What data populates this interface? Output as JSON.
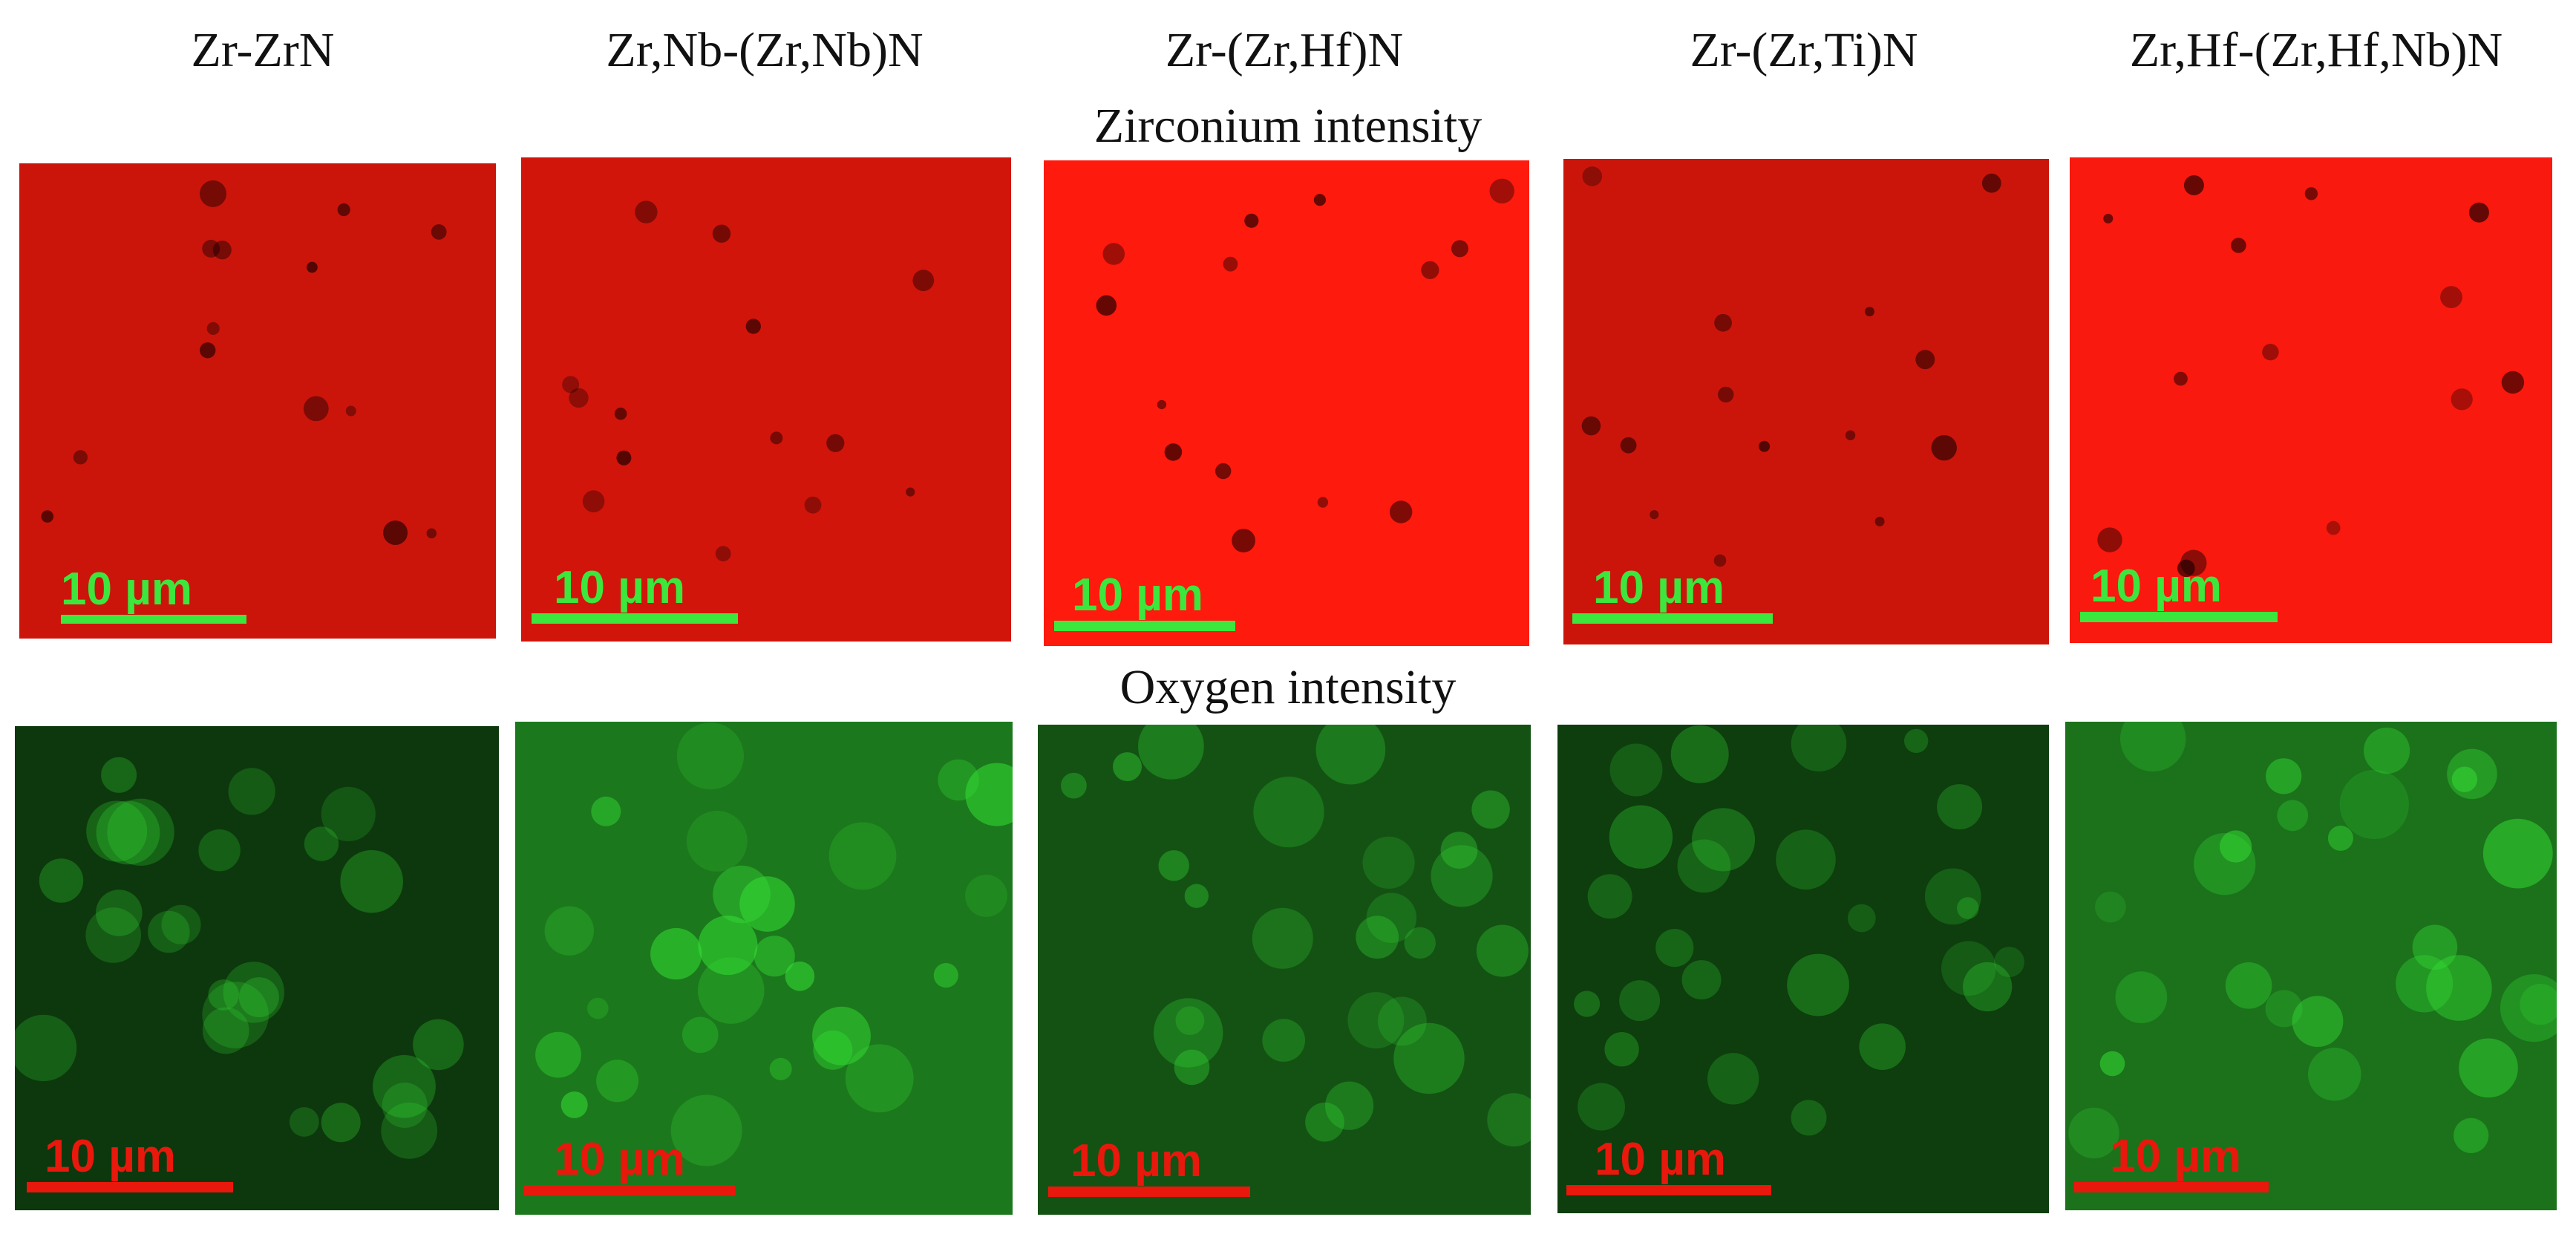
{
  "columns": [
    "Zr-ZrN",
    "Zr,Nb-(Zr,Nb)N",
    "Zr-(Zr,Hf)N",
    "Zr-(Zr,Ti)N",
    "Zr,Hf-(Zr,Hf,Nb)N"
  ],
  "rows": {
    "zirconium": {
      "label": "Zirconium intensity",
      "map_color": "#ff1a0e",
      "scale_color": "#3ce63c",
      "scale_label": "10 µm",
      "brightness": [
        0.55,
        0.6,
        1.0,
        0.55,
        0.95
      ]
    },
    "oxygen": {
      "label": "Oxygen intensity",
      "map_color": "#2ec22e",
      "scale_color": "#e8180c",
      "scale_label": "10 µm",
      "brightness": [
        0.25,
        0.85,
        0.5,
        0.3,
        0.8
      ]
    }
  }
}
